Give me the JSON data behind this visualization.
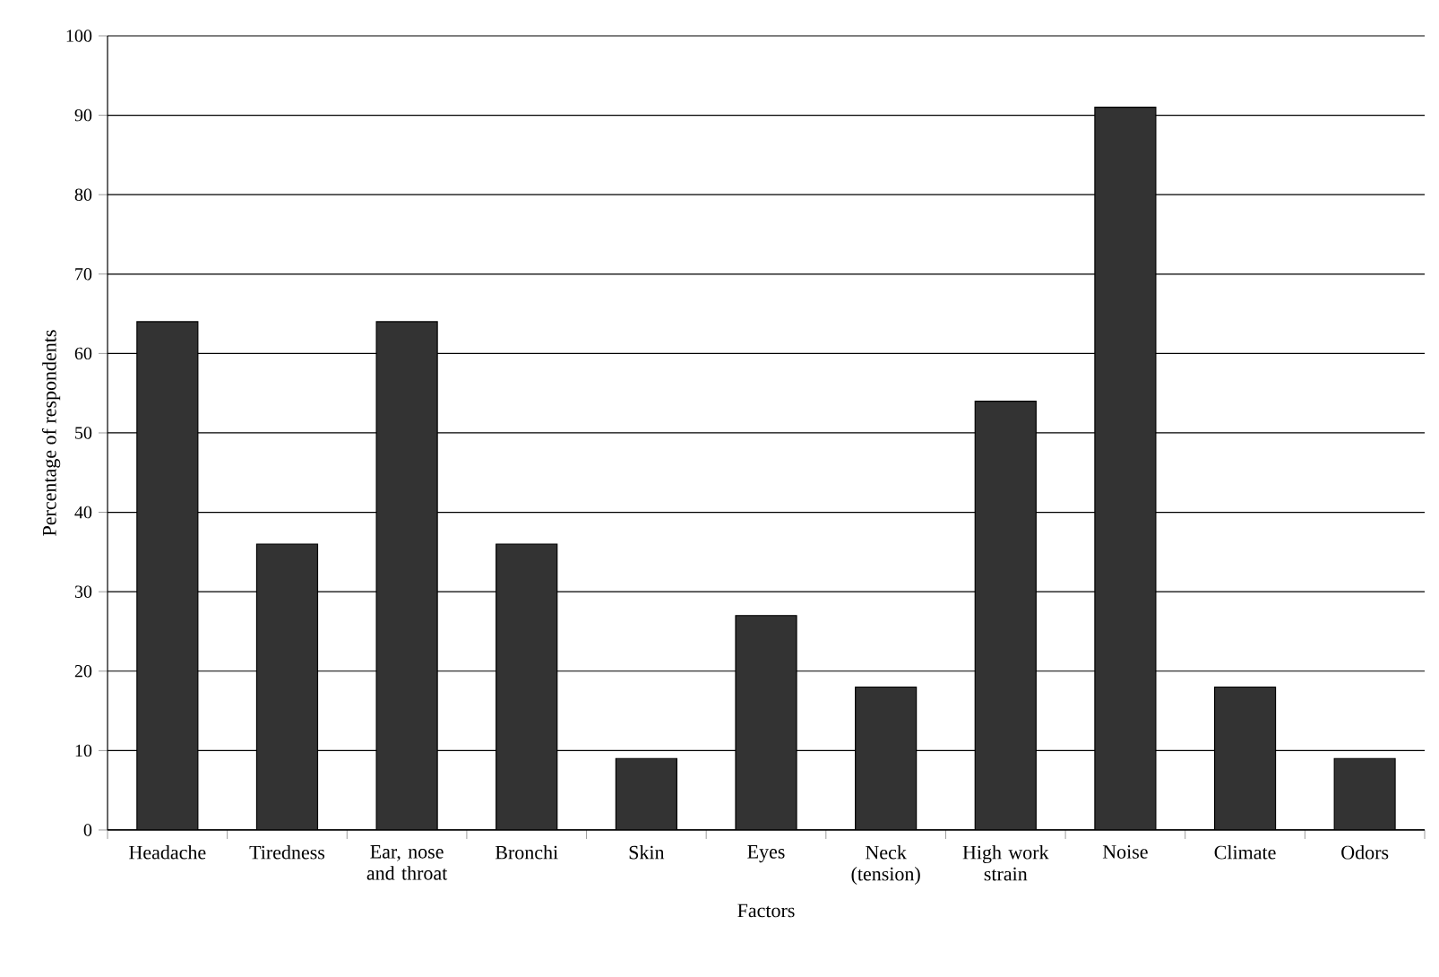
{
  "chart_data": {
    "type": "bar",
    "xlabel": "Factors",
    "ylabel": "Percentage of respondents",
    "categories": [
      "Headache",
      "Tiredness",
      "Ear, nose and throat",
      "Bronchi",
      "Skin",
      "Eyes",
      "Neck (tension)",
      "High work strain",
      "Noise",
      "Climate",
      "Odors"
    ],
    "values": [
      64,
      36,
      64,
      36,
      9,
      27,
      18,
      54,
      91,
      18,
      9
    ],
    "color": "#333333",
    "ylim": [
      0,
      100
    ],
    "yticks": [
      0,
      10,
      20,
      30,
      40,
      50,
      60,
      70,
      80,
      90,
      100
    ],
    "grid": "y"
  }
}
